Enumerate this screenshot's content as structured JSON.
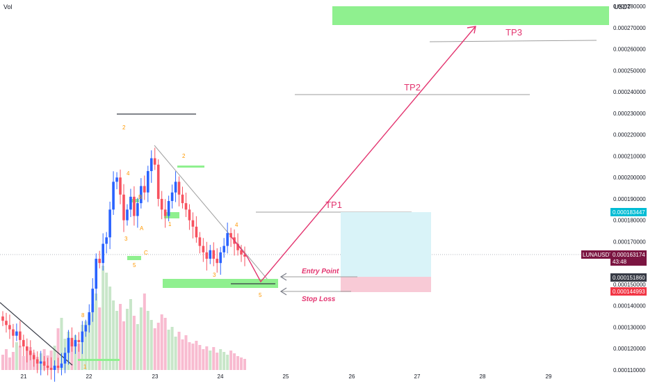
{
  "header": {
    "vol_label": "Vol",
    "currency_label": "USDT"
  },
  "theme": {
    "up": "#2962ff",
    "down": "#f7525f",
    "vol_up": "#c8e6c9",
    "vol_down": "#f8bbd0",
    "zone_green": "#8ff08f",
    "trade_profit": "#d9f3f8",
    "trade_loss": "#f8cad6",
    "path": "#e3346f",
    "grid_text": "#131722",
    "wave_label": "#ff9800",
    "trend_gray": "#9e9e9e",
    "trend_dark": "#363a45"
  },
  "chart_data": {
    "type": "candlestick",
    "symbol": "LUNAUSDT",
    "x_axis": {
      "ticks": [
        "21",
        "22",
        "23",
        "24",
        "25",
        "26",
        "27",
        "28",
        "29"
      ]
    },
    "y_axis": {
      "ticks": [
        "0.000110000",
        "0.000120000",
        "0.000130000",
        "0.000140000",
        "0.000150000",
        "0.000160000",
        "0.000170000",
        "0.000180000",
        "0.000190000",
        "0.000200000",
        "0.000210000",
        "0.000220000",
        "0.000230000",
        "0.000240000",
        "0.000250000",
        "0.000260000",
        "0.000270000",
        "0.000280000"
      ],
      "range": [
        0.000109,
        0.000283
      ]
    },
    "price_labels": {
      "target": "0.000183447",
      "current": "0.000163174",
      "countdown": "43:48",
      "entry": "0.000151860",
      "stop": "0.000144993"
    },
    "annotations": {
      "tp1": "TP1",
      "tp2": "TP2",
      "tp3": "TP3",
      "entry": "Entry Point",
      "stop": "Stop Loss"
    },
    "wave_labels": [
      "2",
      "4",
      "3",
      "5",
      "B",
      "A",
      "C",
      "2",
      "1",
      "3",
      "4",
      "5",
      "8",
      "1"
    ],
    "candles_close": [
      0.000133,
      0.000131,
      0.000129,
      0.000126,
      0.000128,
      0.000124,
      0.000121,
      0.000119,
      0.000117,
      0.000115,
      0.000113,
      0.000114,
      0.000112,
      0.000111,
      0.00011,
      0.000112,
      0.000111,
      0.000113,
      0.000118,
      0.000125,
      0.000121,
      0.000124,
      0.000123,
      0.000128,
      0.000131,
      0.000137,
      0.000148,
      0.000162,
      0.00016,
      0.000169,
      0.000172,
      0.000185,
      0.000198,
      0.0002,
      0.000192,
      0.00018,
      0.000185,
      0.000191,
      0.000182,
      0.000188,
      0.000196,
      0.000193,
      0.000203,
      0.000209,
      0.000206,
      0.00019,
      0.000185,
      0.000182,
      0.000189,
      0.000193,
      0.000198,
      0.000192,
      0.000188,
      0.000185,
      0.00018,
      0.000177,
      0.000172,
      0.000168,
      0.000165,
      0.000162,
      0.000166,
      0.000162,
      0.00016,
      0.000165,
      0.000168,
      0.000174,
      0.000172,
      0.000169,
      0.000166,
      0.000164,
      0.000163
    ]
  }
}
